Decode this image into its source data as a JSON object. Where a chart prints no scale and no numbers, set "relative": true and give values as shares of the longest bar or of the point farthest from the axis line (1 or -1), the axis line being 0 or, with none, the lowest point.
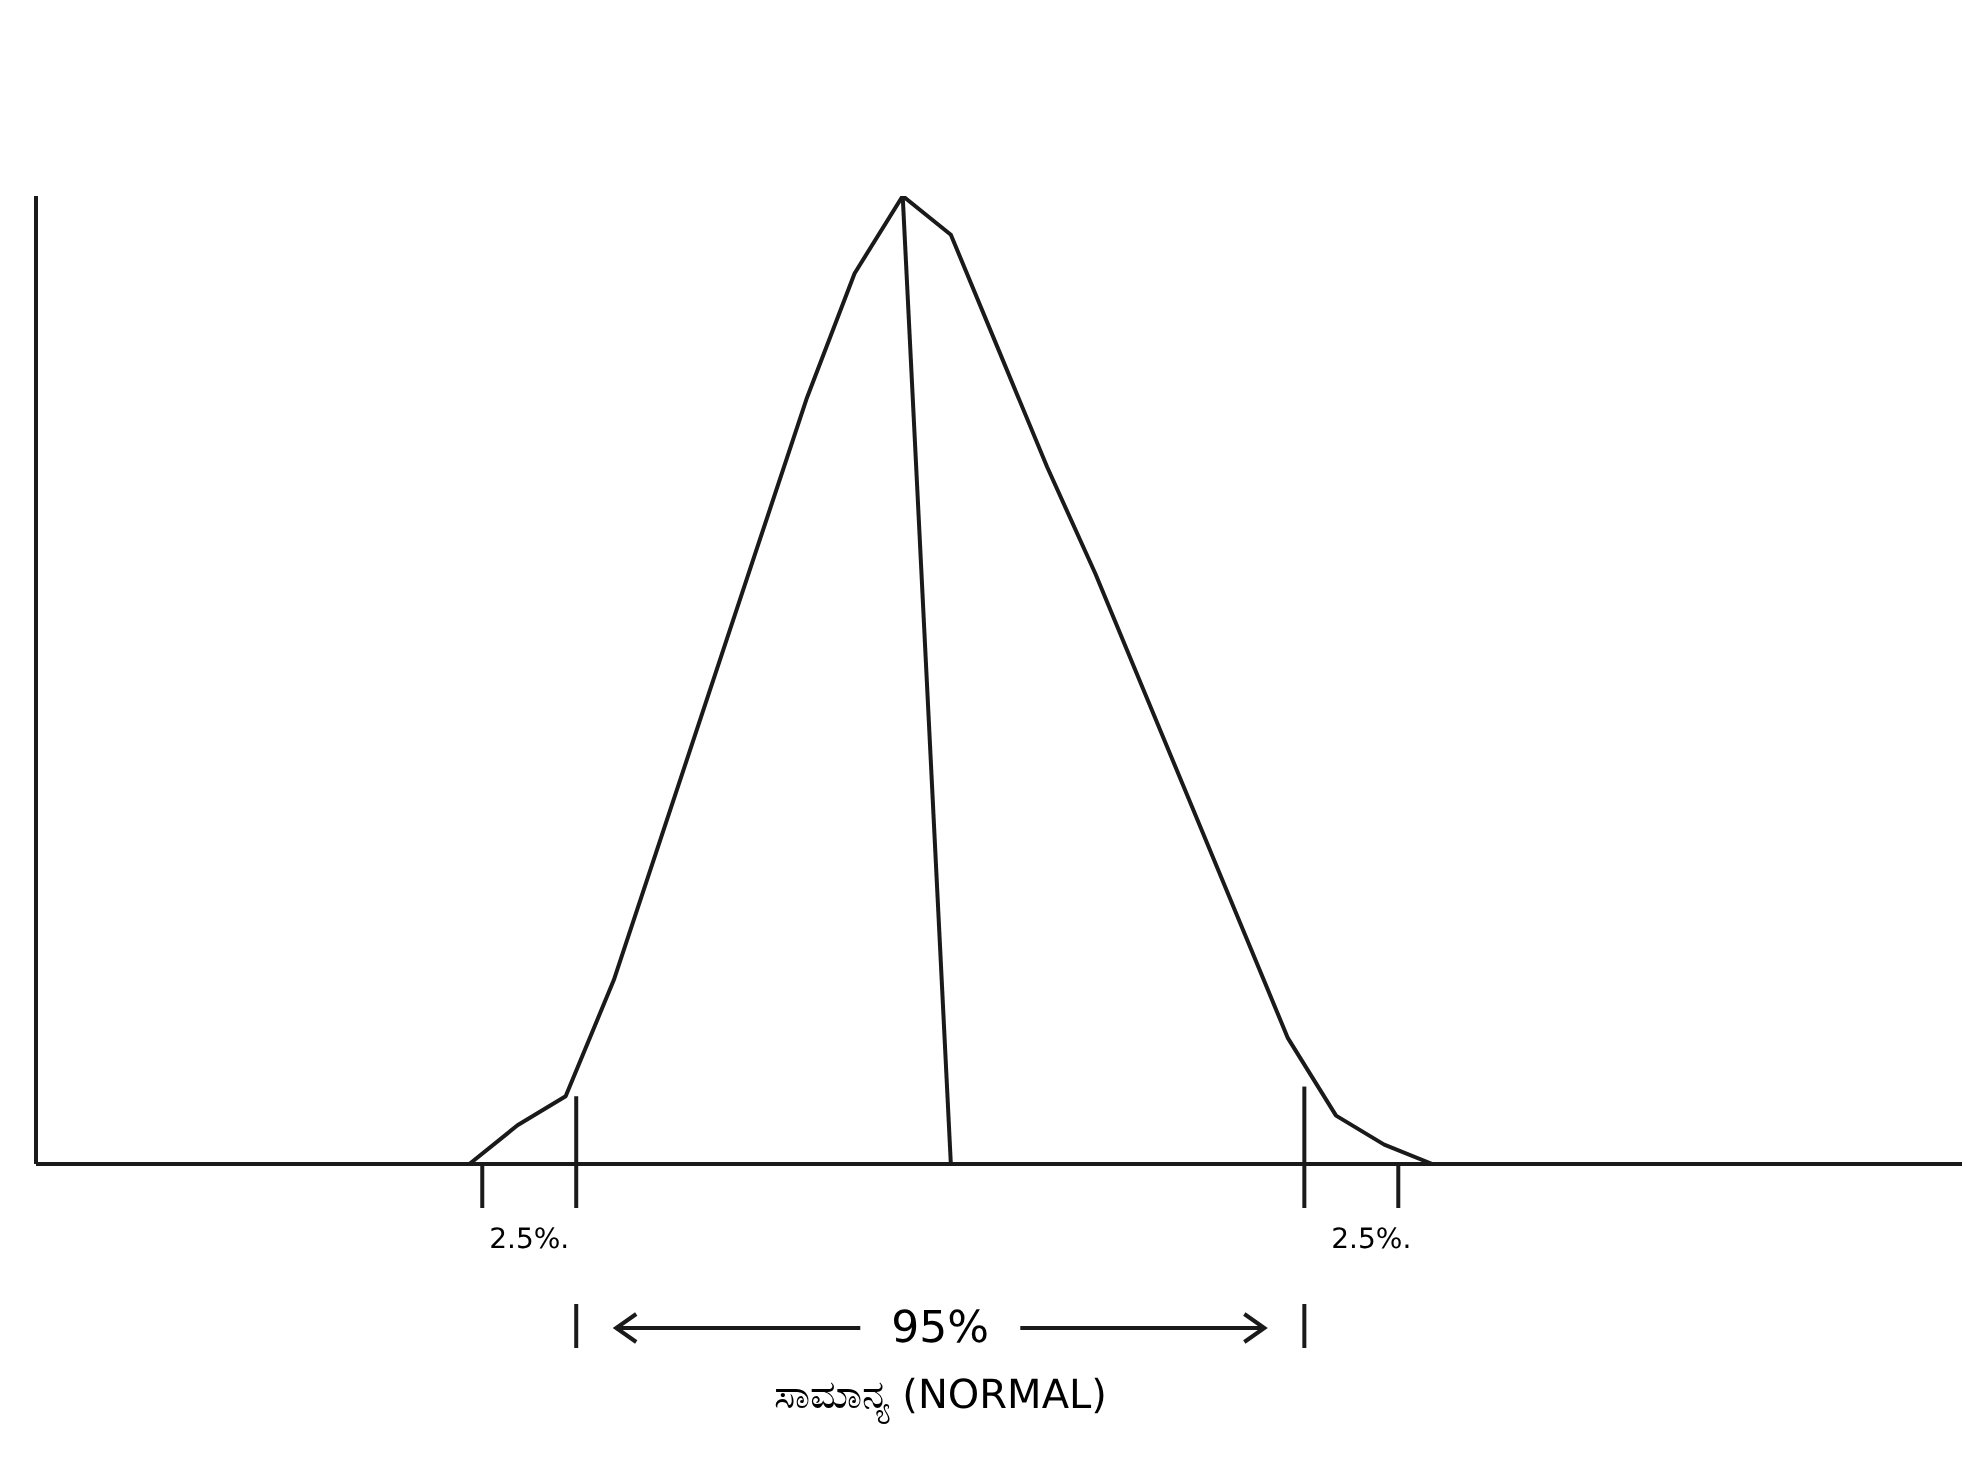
{
  "chart_data": {
    "type": "line",
    "relative": true,
    "categories": [
      null,
      null,
      null,
      null,
      null,
      null,
      null,
      null,
      null,
      null,
      null,
      null,
      null,
      null,
      null,
      null,
      null,
      null,
      null,
      null,
      null,
      null,
      null,
      null,
      null,
      null,
      null,
      null,
      null,
      null,
      null,
      null,
      null,
      null,
      null,
      null,
      null,
      null,
      null,
      null,
      null
    ],
    "series": [
      {
        "color": "#1a1a1a",
        "values": [
          null,
          null,
          null,
          null,
          null,
          null,
          null,
          null,
          null,
          0,
          0.04,
          0.07,
          0.19,
          0.34,
          0.49,
          0.64,
          0.79,
          0.92,
          1,
          0.96,
          0.84,
          0.72,
          0.61,
          0.49,
          0.37,
          0.25,
          0.13,
          0.05,
          0.02,
          0,
          null,
          null,
          null,
          null,
          null,
          null,
          null,
          null,
          null,
          null,
          null
        ]
      },
      {
        "color": "#1a1a1a",
        "values": [
          null,
          null,
          null,
          null,
          null,
          null,
          null,
          null,
          null,
          null,
          null,
          null,
          null,
          null,
          null,
          null,
          null,
          null,
          1,
          0,
          null,
          null,
          null,
          null,
          null,
          null,
          null,
          null,
          null,
          null,
          null,
          null,
          null,
          null,
          null,
          null,
          null,
          null,
          null,
          null,
          null
        ]
      }
    ],
    "annotations": [
      "2.5%.",
      "95%",
      "2.5%.",
      "ಸಾಮಾನ್ಯ (NORMAL)"
    ],
    "marker": "none",
    "line_style": "solid"
  }
}
